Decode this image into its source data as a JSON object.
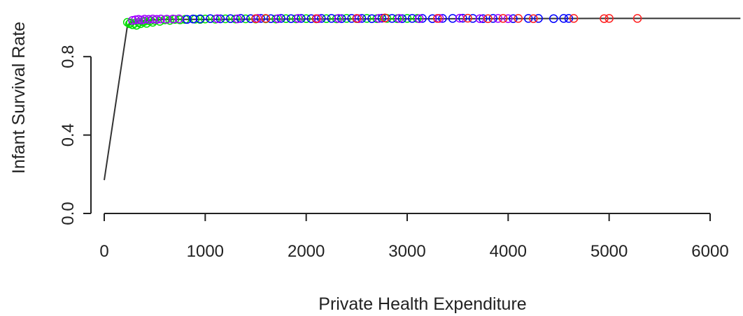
{
  "chart_data": {
    "type": "scatter",
    "title": "",
    "xlabel": "Private Health Expenditure",
    "ylabel": "Infant Survival Rate",
    "xlim": [
      -50,
      6250
    ],
    "ylim": [
      0.0,
      1.02
    ],
    "x_ticks": [
      0,
      1000,
      2000,
      3000,
      4000,
      5000,
      6000
    ],
    "x_tick_labels": [
      "0",
      "1000",
      "2000",
      "3000",
      "4000",
      "5000",
      "6000"
    ],
    "y_ticks": [
      0.0,
      0.4,
      0.8
    ],
    "y_tick_labels": [
      "0.0",
      "0.4",
      "0.8"
    ],
    "grid": false,
    "legend": "none",
    "fit_line": {
      "x": [
        0,
        230,
        260,
        300,
        400,
        600,
        1000,
        2000,
        3000,
        4000,
        5000,
        6000,
        6300
      ],
      "y": [
        0.17,
        0.96,
        0.97,
        0.98,
        0.985,
        0.99,
        0.99,
        0.992,
        0.993,
        0.994,
        0.995,
        0.995,
        0.995
      ]
    },
    "series": [
      {
        "color": "#00dd00",
        "x": [
          230,
          250,
          260,
          280,
          300,
          320,
          340,
          360,
          380,
          400,
          420,
          450,
          480,
          500,
          550,
          600,
          650,
          700,
          750,
          800,
          900,
          950,
          1000,
          1100,
          1200,
          1300,
          1400,
          1500,
          1600,
          1700,
          1800,
          1900,
          2000,
          2100,
          2200,
          2300,
          2400,
          2500,
          2600,
          2700,
          2800,
          2900,
          3000,
          3100
        ],
        "y": [
          0.975,
          0.968,
          0.972,
          0.963,
          0.97,
          0.96,
          0.975,
          0.968,
          0.978,
          0.98,
          0.97,
          0.982,
          0.975,
          0.985,
          0.98,
          0.988,
          0.985,
          0.99,
          0.988,
          0.99,
          0.991,
          0.99,
          0.992,
          0.991,
          0.993,
          0.992,
          0.993,
          0.992,
          0.993,
          0.992,
          0.994,
          0.993,
          0.994,
          0.993,
          0.994,
          0.993,
          0.995,
          0.994,
          0.995,
          0.994,
          0.995,
          0.994,
          0.995,
          0.995
        ]
      },
      {
        "color": "#0000ff",
        "x": [
          820,
          880,
          950,
          1050,
          1150,
          1250,
          1350,
          1450,
          1550,
          1650,
          1750,
          1850,
          1950,
          2050,
          2150,
          2250,
          2350,
          2450,
          2550,
          2650,
          2750,
          2850,
          2950,
          3050,
          3150,
          3250,
          3350,
          3450,
          3550,
          3650,
          3750,
          3850,
          4050,
          4200,
          4300,
          4450,
          4550,
          4600
        ],
        "y": [
          0.99,
          0.992,
          0.993,
          0.994,
          0.993,
          0.994,
          0.995,
          0.994,
          0.995,
          0.994,
          0.995,
          0.994,
          0.995,
          0.994,
          0.995,
          0.995,
          0.994,
          0.995,
          0.995,
          0.994,
          0.996,
          0.995,
          0.994,
          0.995,
          0.995,
          0.994,
          0.995,
          0.995,
          0.996,
          0.995,
          0.994,
          0.995,
          0.994,
          0.995,
          0.995,
          0.994,
          0.995,
          0.995
        ]
      },
      {
        "color": "#a000ff",
        "x": [
          280,
          310,
          340,
          370,
          400,
          440,
          480,
          520,
          560,
          620,
          680,
          740,
          1120,
          1320,
          1520,
          1720,
          1920,
          2120,
          2320,
          2520,
          2720,
          2920,
          3120,
          3320,
          3520,
          3720,
          3900,
          4000
        ],
        "y": [
          0.985,
          0.988,
          0.99,
          0.987,
          0.991,
          0.99,
          0.992,
          0.99,
          0.992,
          0.991,
          0.992,
          0.993,
          0.994,
          0.993,
          0.995,
          0.994,
          0.995,
          0.994,
          0.995,
          0.994,
          0.995,
          0.995,
          0.994,
          0.995,
          0.996,
          0.994,
          0.995,
          0.994
        ]
      },
      {
        "color": "#ff2020",
        "x": [
          1500,
          1600,
          2100,
          2500,
          2780,
          3300,
          3600,
          3800,
          3950,
          4100,
          4250,
          4650,
          4950,
          5000,
          5280
        ],
        "y": [
          0.994,
          0.995,
          0.994,
          0.995,
          0.997,
          0.995,
          0.996,
          0.994,
          0.995,
          0.995,
          0.994,
          0.995,
          0.994,
          0.995,
          0.995
        ]
      }
    ]
  }
}
